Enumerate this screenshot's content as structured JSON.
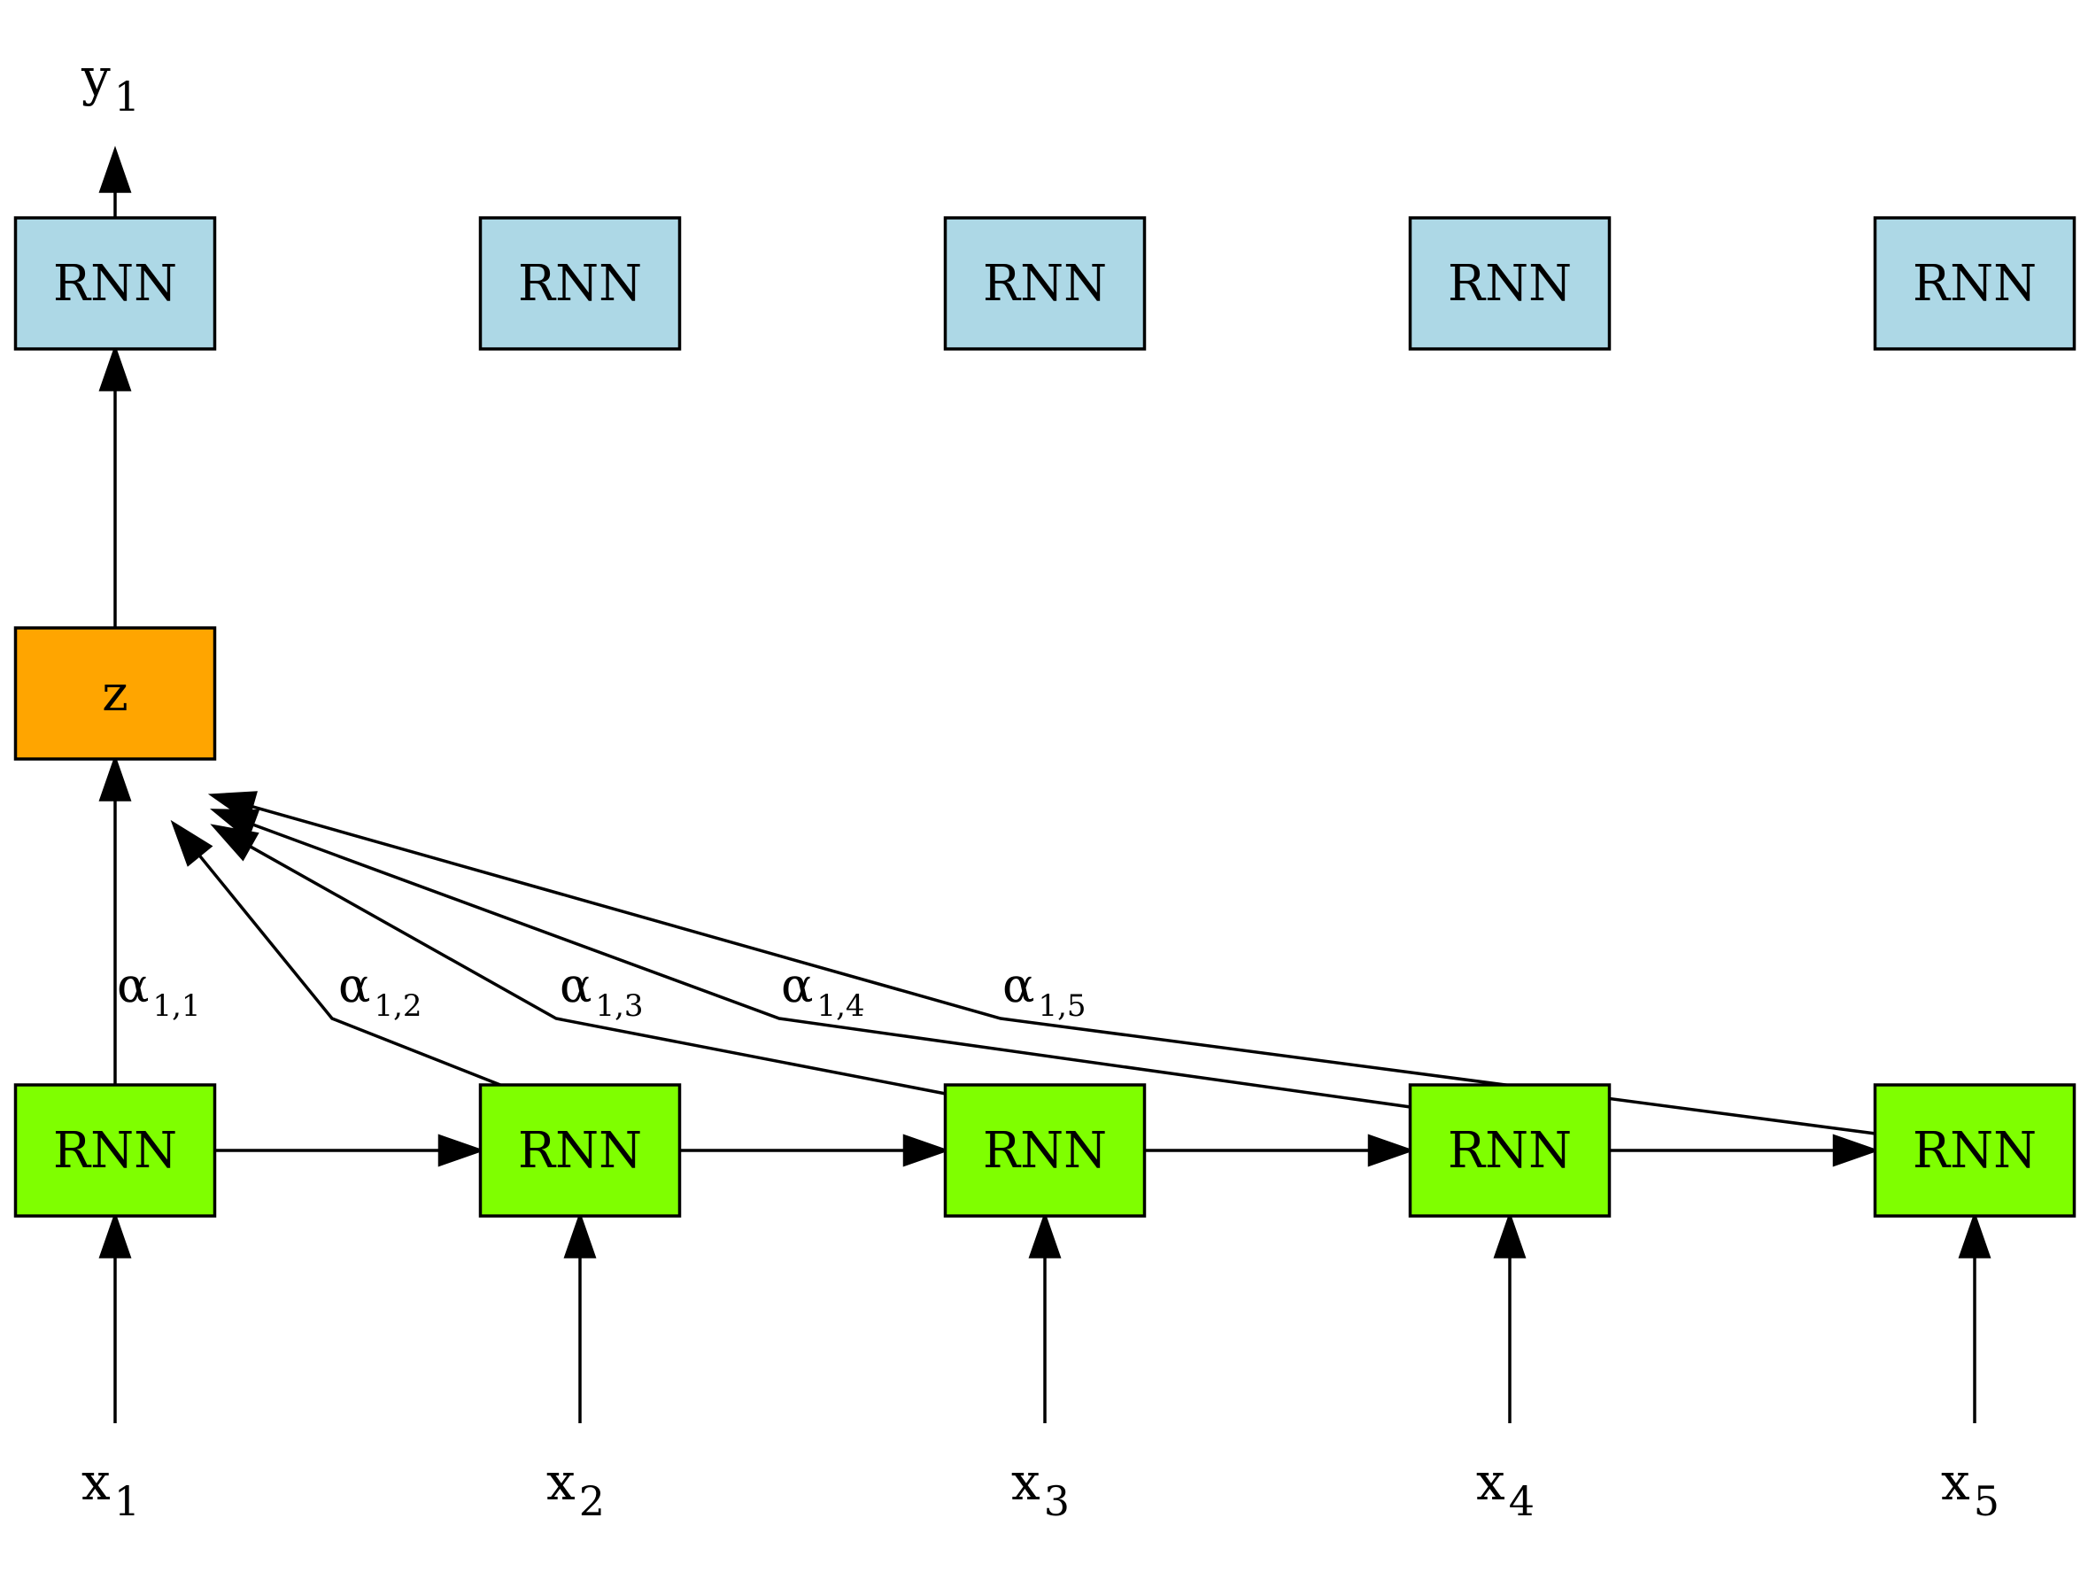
{
  "colors": {
    "encoder_fill": "#7fff00",
    "decoder_fill": "#add8e6",
    "context_fill": "#ffa500"
  },
  "output": {
    "base": "y",
    "sub": "1"
  },
  "decoder": [
    {
      "label": "RNN"
    },
    {
      "label": "RNN"
    },
    {
      "label": "RNN"
    },
    {
      "label": "RNN"
    },
    {
      "label": "RNN"
    }
  ],
  "context": {
    "label": "z"
  },
  "encoder": [
    {
      "label": "RNN"
    },
    {
      "label": "RNN"
    },
    {
      "label": "RNN"
    },
    {
      "label": "RNN"
    },
    {
      "label": "RNN"
    }
  ],
  "inputs": [
    {
      "base": "x",
      "sub": "1"
    },
    {
      "base": "x",
      "sub": "2"
    },
    {
      "base": "x",
      "sub": "3"
    },
    {
      "base": "x",
      "sub": "4"
    },
    {
      "base": "x",
      "sub": "5"
    }
  ],
  "attention": [
    {
      "base": "α",
      "sub": "1,1"
    },
    {
      "base": "α",
      "sub": "1,2"
    },
    {
      "base": "α",
      "sub": "1,3"
    },
    {
      "base": "α",
      "sub": "1,4"
    },
    {
      "base": "α",
      "sub": "1,5"
    }
  ]
}
